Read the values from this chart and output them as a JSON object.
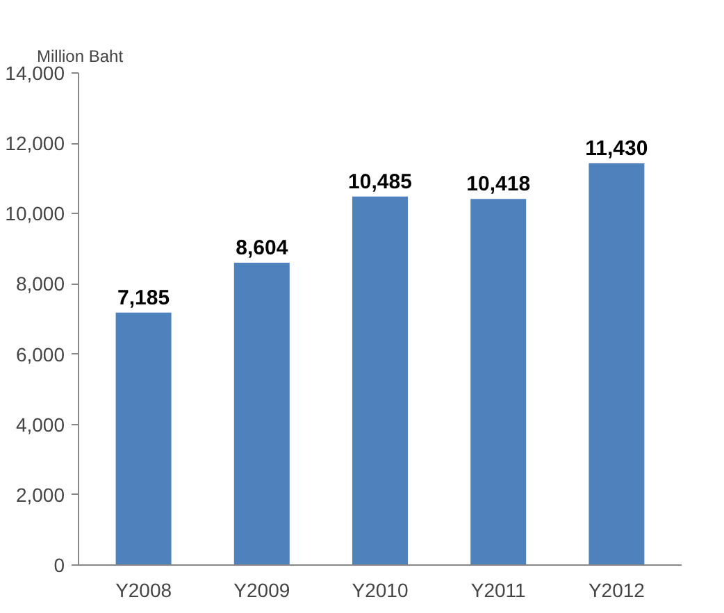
{
  "chart_data": {
    "type": "bar",
    "ylabel": "Million Baht",
    "categories": [
      "Y2008",
      "Y2009",
      "Y2010",
      "Y2011",
      "Y2012"
    ],
    "values": [
      7185,
      8604,
      10485,
      10418,
      11430
    ],
    "color": "#4f81bd",
    "ylim": [
      0,
      14000
    ],
    "yticks": [
      {
        "value": 0,
        "label": "0"
      },
      {
        "value": 2000,
        "label": "2,000"
      },
      {
        "value": 4000,
        "label": "4,000"
      },
      {
        "value": 6000,
        "label": "6,000"
      },
      {
        "value": 8000,
        "label": "8,000"
      },
      {
        "value": 10000,
        "label": "10,000"
      },
      {
        "value": 12000,
        "label": "12,000"
      },
      {
        "value": 14000,
        "label": "14,000"
      }
    ],
    "value_labels": [
      "7,185",
      "8,604",
      "10,485",
      "10,418",
      "11,430"
    ]
  }
}
